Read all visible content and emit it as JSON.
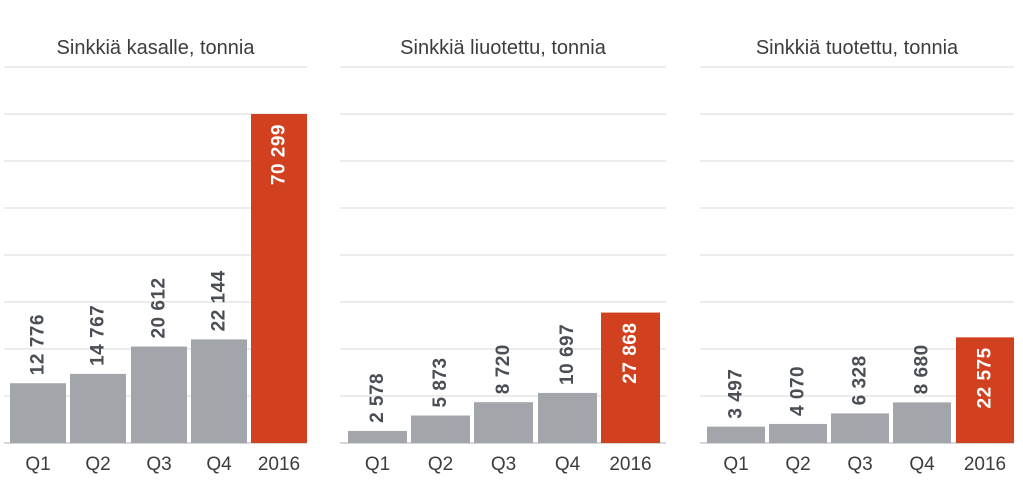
{
  "colors": {
    "quarter_bar": "#a2a6ab",
    "total_bar": "#d1401f",
    "quarter_label": "#4a4e55",
    "total_label": "#ffffff"
  },
  "chart_data": [
    {
      "type": "bar",
      "title": "Sinkkiä kasalle, tonnia",
      "categories": [
        "Q1",
        "Q2",
        "Q3",
        "Q4",
        "2016"
      ],
      "values": [
        12776,
        14767,
        20612,
        22144,
        70299
      ],
      "value_labels": [
        "12 776",
        "14 767",
        "20 612",
        "22 144",
        "70 299"
      ],
      "highlight_category": "2016",
      "ylim": [
        0,
        70299
      ],
      "grid": true
    },
    {
      "type": "bar",
      "title": "Sinkkiä liuotettu, tonnia",
      "categories": [
        "Q1",
        "Q2",
        "Q3",
        "Q4",
        "2016"
      ],
      "values": [
        2578,
        5873,
        8720,
        10697,
        27868
      ],
      "value_labels": [
        "2 578",
        "5 873",
        "8 720",
        "10 697",
        "27 868"
      ],
      "highlight_category": "2016",
      "ylim": [
        0,
        70299
      ],
      "grid": true
    },
    {
      "type": "bar",
      "title": "Sinkkiä tuotettu, tonnia",
      "categories": [
        "Q1",
        "Q2",
        "Q3",
        "Q4",
        "2016"
      ],
      "values": [
        3497,
        4070,
        6328,
        8680,
        22575
      ],
      "value_labels": [
        "3 497",
        "4 070",
        "6 328",
        "8 680",
        "22 575"
      ],
      "highlight_category": "2016",
      "ylim": [
        0,
        70299
      ],
      "grid": true
    }
  ]
}
